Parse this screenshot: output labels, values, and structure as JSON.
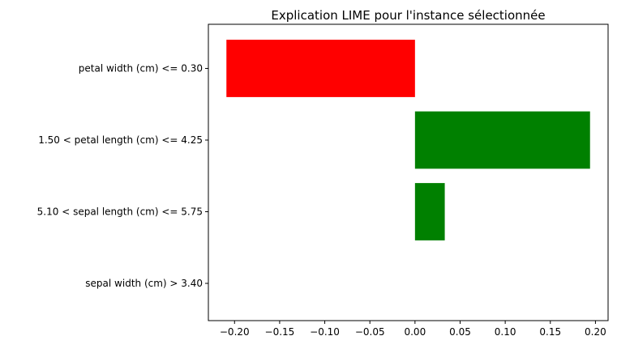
{
  "chart_data": {
    "type": "bar",
    "orientation": "horizontal",
    "title": "Explication LIME pour l'instance sélectionnée",
    "xlabel": "",
    "ylabel": "",
    "categories": [
      "petal width (cm) <= 0.30",
      "1.50 < petal length (cm) <= 4.25",
      "5.10 < sepal length (cm) <= 5.75",
      "sepal width (cm) > 3.40"
    ],
    "values": [
      -0.209,
      0.194,
      0.033,
      0.0
    ],
    "colors": [
      "#ff0000",
      "#008000",
      "#008000",
      "#008000"
    ],
    "xlim": [
      -0.229,
      0.214
    ],
    "xticks": [
      -0.2,
      -0.15,
      -0.1,
      -0.05,
      0.0,
      0.05,
      0.1,
      0.15,
      0.2
    ],
    "xtick_labels": [
      "−0.20",
      "−0.15",
      "−0.10",
      "−0.05",
      "0.00",
      "0.05",
      "0.10",
      "0.15",
      "0.20"
    ],
    "grid": false,
    "legend": "none"
  }
}
